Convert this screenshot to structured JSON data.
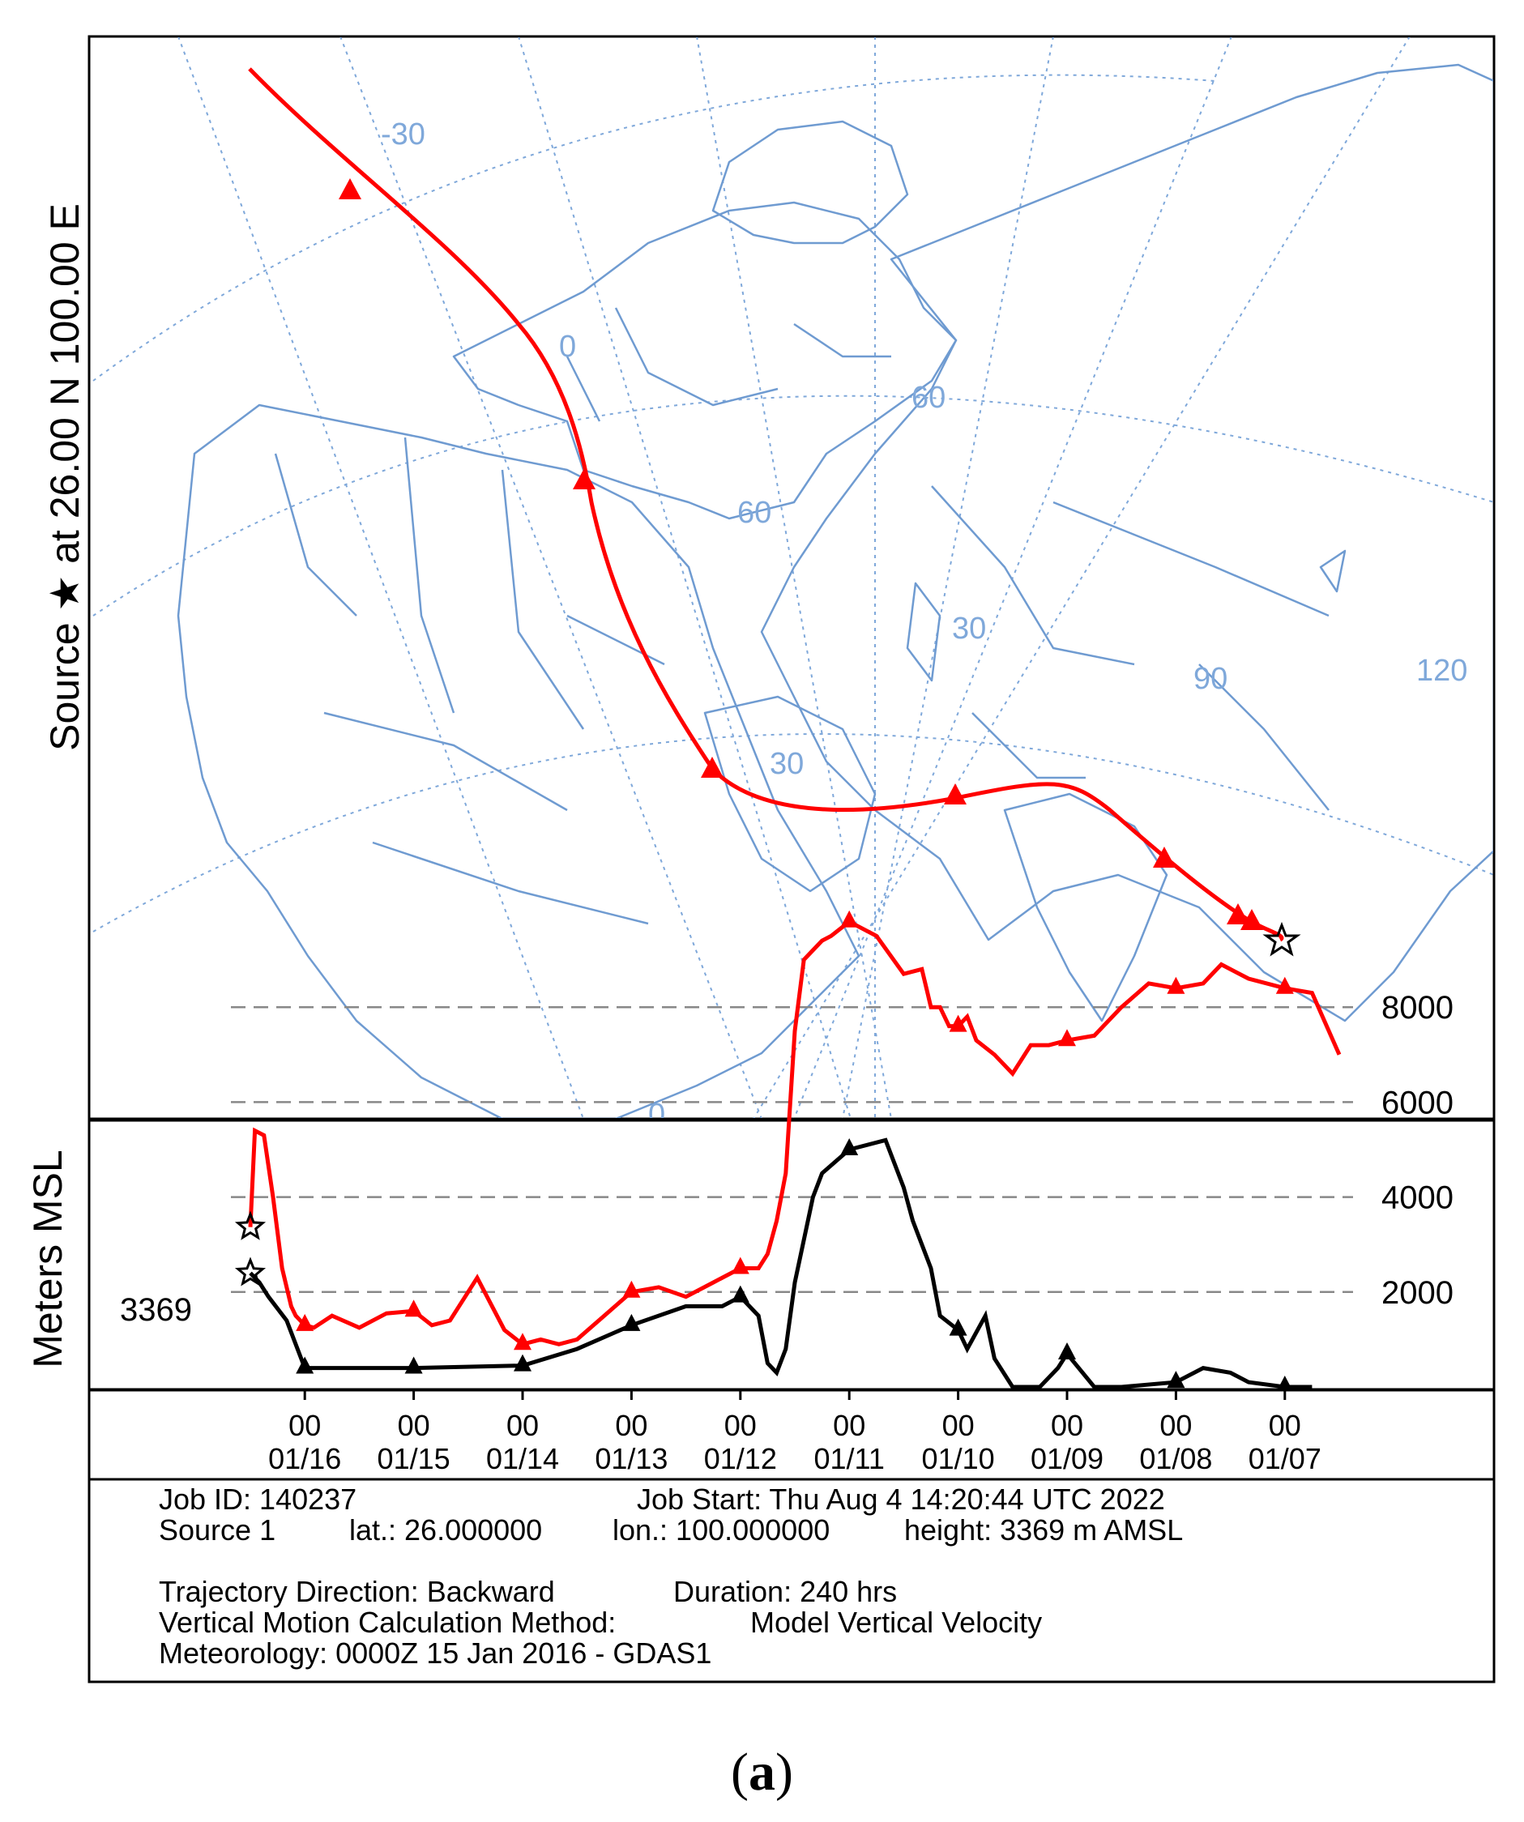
{
  "map": {
    "side_title": "Source ★ at 26.00 N 100.00 E",
    "grid_labels": [
      "-30",
      "0",
      "60",
      "60",
      "30",
      "90",
      "120",
      "30",
      "0"
    ],
    "colors": {
      "land": "#6f9bd1",
      "grid": "#7fa8da",
      "trajectory": "#ff0000",
      "source_star": "#000000"
    },
    "icons": {
      "source": "star-icon",
      "endpoint": "triangle-marker-icon"
    }
  },
  "chart_data": [
    {
      "type": "map-trajectory",
      "title": "",
      "source": {
        "lat": 26.0,
        "lon": 100.0
      },
      "markers": "12-hour intervals",
      "series": [
        {
          "color": "#ff0000"
        }
      ]
    },
    {
      "type": "line",
      "title": "",
      "xlabel": "",
      "ylabel": "Meters MSL",
      "start_label": "3369",
      "y_ticks": [
        2000,
        4000,
        6000,
        8000
      ],
      "ylim": [
        0,
        10000
      ],
      "x_tick_hours": [
        "00",
        "00",
        "00",
        "00",
        "00",
        "00",
        "00",
        "00",
        "00",
        "00"
      ],
      "x_tick_dates": [
        "01/16",
        "01/15",
        "01/14",
        "01/13",
        "01/12",
        "01/11",
        "01/10",
        "01/09",
        "01/08",
        "01/07"
      ],
      "x_hours_before_start": [
        12,
        36,
        60,
        84,
        108,
        132,
        156,
        180,
        204,
        228
      ],
      "xlim_hours": [
        -6,
        240
      ],
      "series": [
        {
          "color": "#ff0000",
          "role": "trajectory height",
          "hours": [
            0,
            1,
            3,
            5,
            7,
            9,
            10,
            12,
            14,
            18,
            24,
            30,
            36,
            40,
            44,
            50,
            56,
            60,
            64,
            68,
            72,
            78,
            84,
            90,
            96,
            102,
            108,
            112,
            114,
            116,
            118,
            120,
            122,
            124,
            126,
            128,
            132,
            138,
            144,
            148,
            150,
            152,
            154,
            156,
            158,
            160,
            164,
            168,
            172,
            176,
            180,
            186,
            192,
            198,
            204,
            210,
            214,
            220,
            228,
            234,
            240
          ],
          "values": [
            3369,
            5400,
            5300,
            4000,
            2500,
            1700,
            1500,
            1300,
            1250,
            1500,
            1250,
            1550,
            1600,
            1300,
            1400,
            2300,
            1200,
            900,
            1000,
            900,
            1000,
            1500,
            2000,
            2100,
            1900,
            2200,
            2500,
            2500,
            2800,
            3500,
            4500,
            7500,
            9000,
            9200,
            9400,
            9500,
            9800,
            9500,
            8700,
            8800,
            8000,
            8000,
            7600,
            7600,
            7800,
            7300,
            7000,
            6600,
            7200,
            7200,
            7300,
            7400,
            8000,
            8500,
            8400,
            8500,
            8900,
            8600,
            8400,
            8300,
            7000
          ]
        },
        {
          "color": "#000000",
          "role": "terrain / ground height",
          "hours": [
            0,
            2,
            4,
            8,
            12,
            20,
            36,
            60,
            72,
            84,
            96,
            104,
            108,
            112,
            114,
            116,
            118,
            120,
            124,
            126,
            132,
            140,
            144,
            146,
            150,
            152,
            156,
            158,
            162,
            164,
            168,
            174,
            178,
            180,
            186,
            192,
            204,
            210,
            216,
            220,
            228,
            234
          ],
          "values": [
            2400,
            2200,
            1900,
            1400,
            400,
            400,
            400,
            450,
            800,
            1300,
            1700,
            1700,
            1900,
            1500,
            500,
            300,
            800,
            2200,
            4000,
            4500,
            5000,
            5200,
            4200,
            3500,
            2500,
            1500,
            1200,
            800,
            1500,
            600,
            0,
            0,
            400,
            700,
            0,
            0,
            100,
            400,
            300,
            100,
            0,
            0
          ]
        }
      ],
      "x_direction": "hours increase to the right (backward in time)"
    }
  ],
  "info": {
    "job_id": "Job ID: 140237",
    "job_start": "Job Start: Thu Aug  4 14:20:44 UTC 2022",
    "source": "Source 1",
    "lat": "lat.: 26.000000",
    "lon": "lon.: 100.000000",
    "height": "height: 3369 m AMSL",
    "direction": "Trajectory Direction: Backward",
    "duration": "Duration: 240 hrs",
    "vertical_method_label": "Vertical Motion Calculation Method:",
    "vertical_method_value": "Model Vertical Velocity",
    "meteorology": "Meteorology: 0000Z 15 Jan 2016 - GDAS1"
  },
  "caption": {
    "open": "(",
    "letter": "a",
    "close": ")"
  }
}
